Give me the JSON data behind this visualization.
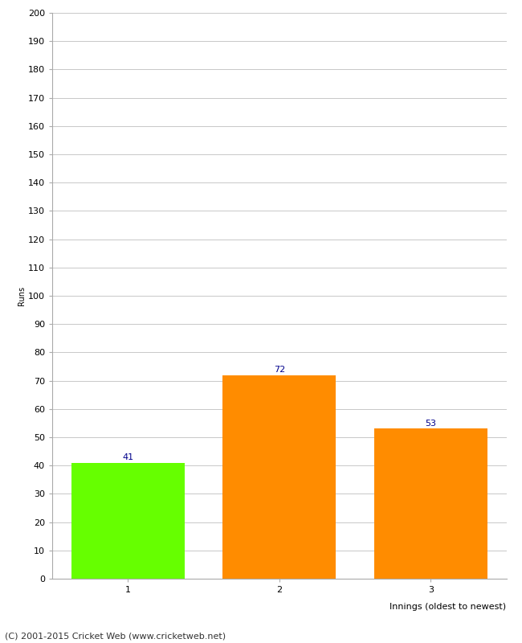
{
  "categories": [
    "1",
    "2",
    "3"
  ],
  "values": [
    41,
    72,
    53
  ],
  "bar_colors": [
    "#66ff00",
    "#ff8c00",
    "#ff8c00"
  ],
  "value_labels": [
    41,
    72,
    53
  ],
  "ylabel": "Runs",
  "xlabel": "Innings (oldest to newest)",
  "ylim": [
    0,
    200
  ],
  "yticks": [
    0,
    10,
    20,
    30,
    40,
    50,
    60,
    70,
    80,
    90,
    100,
    110,
    120,
    130,
    140,
    150,
    160,
    170,
    180,
    190,
    200
  ],
  "footer": "(C) 2001-2015 Cricket Web (www.cricketweb.net)",
  "label_color": "#00008b",
  "background_color": "#ffffff",
  "grid_color": "#c8c8c8"
}
